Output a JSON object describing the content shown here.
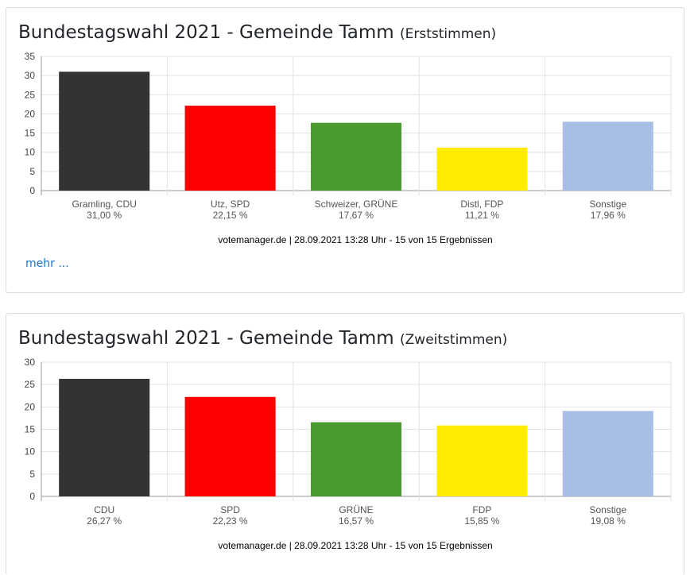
{
  "charts": [
    {
      "title_main": "Bundestagswahl 2021 - Gemeinde Tamm",
      "title_sub": "(Erststimmen)",
      "footer": "votemanager.de | 28.09.2021 13:28 Uhr - 15 von 15 Ergebnissen",
      "more_label": "mehr ..."
    },
    {
      "title_main": "Bundestagswahl 2021 - Gemeinde Tamm",
      "title_sub": "(Zweitstimmen)",
      "footer": "votemanager.de | 28.09.2021 13:28 Uhr - 15 von 15 Ergebnissen"
    }
  ],
  "chart_data": [
    {
      "type": "bar",
      "categories": [
        "Gramling, CDU",
        "Utz, SPD",
        "Schweizer, GRÜNE",
        "Distl, FDP",
        "Sonstige"
      ],
      "values": [
        31.0,
        22.15,
        17.67,
        11.21,
        17.96
      ],
      "value_labels": [
        "31,00 %",
        "22,15 %",
        "17,67 %",
        "11,21 %",
        "17,96 %"
      ],
      "colors": [
        "#333333",
        "#ff0000",
        "#4a9a2f",
        "#ffec00",
        "#a9bee6"
      ],
      "ylim": [
        0,
        35
      ],
      "yticks": [
        0,
        5,
        10,
        15,
        20,
        25,
        30,
        35
      ],
      "grid": true,
      "legend": "none"
    },
    {
      "type": "bar",
      "categories": [
        "CDU",
        "SPD",
        "GRÜNE",
        "FDP",
        "Sonstige"
      ],
      "values": [
        26.27,
        22.23,
        16.57,
        15.85,
        19.08
      ],
      "value_labels": [
        "26,27 %",
        "22,23 %",
        "16,57 %",
        "15,85 %",
        "19,08 %"
      ],
      "colors": [
        "#333333",
        "#ff0000",
        "#4a9a2f",
        "#ffec00",
        "#a9bee6"
      ],
      "ylim": [
        0,
        30
      ],
      "yticks": [
        0,
        5,
        10,
        15,
        20,
        25,
        30
      ],
      "grid": true,
      "legend": "none"
    }
  ]
}
